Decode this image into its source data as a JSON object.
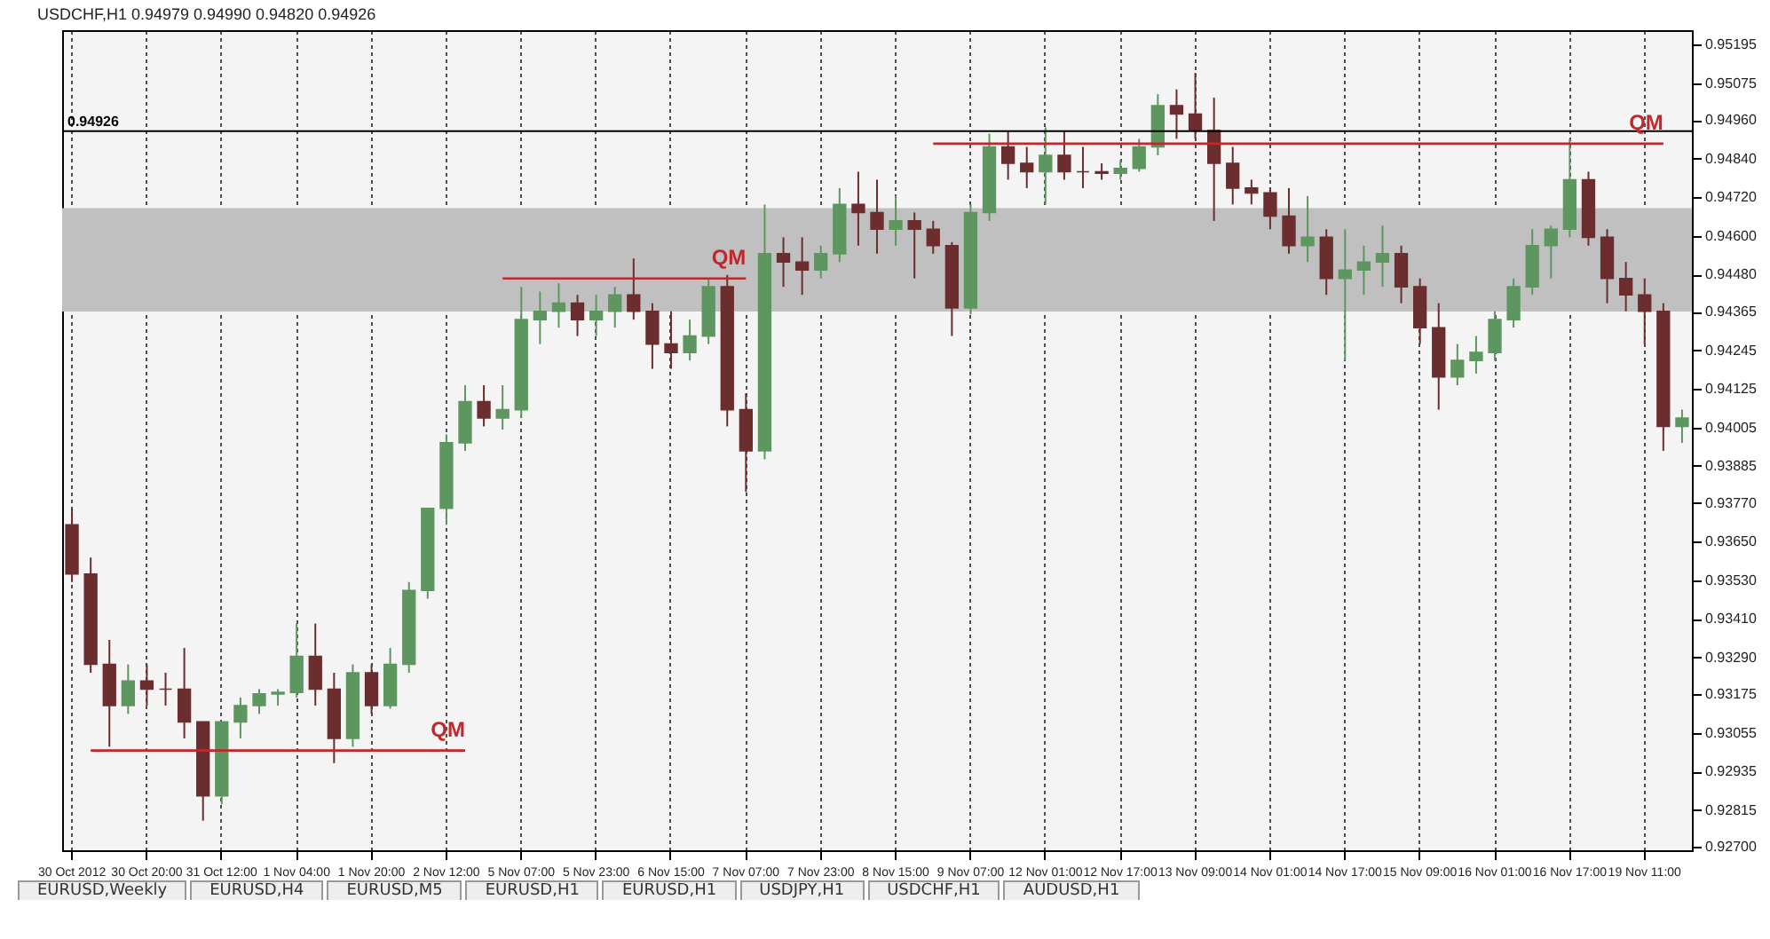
{
  "chart_data": {
    "type": "candlestick",
    "title": "USDCHF,H1  0.94979 0.94990 0.94820 0.94926",
    "categories": [
      "30 Oct 2012",
      null,
      null,
      null,
      "30 Oct 20:00",
      null,
      null,
      null,
      "31 Oct 12:00",
      null,
      null,
      null,
      "1 Nov 04:00",
      null,
      null,
      null,
      "1 Nov 20:00",
      null,
      null,
      null,
      "2 Nov 12:00",
      null,
      null,
      null,
      "5 Nov 07:00",
      null,
      null,
      null,
      "5 Nov 23:00",
      null,
      null,
      null,
      "6 Nov 15:00",
      null,
      null,
      null,
      "7 Nov 07:00",
      null,
      null,
      null,
      "7 Nov 23:00",
      null,
      null,
      null,
      "8 Nov 15:00",
      null,
      null,
      null,
      "9 Nov 07:00",
      null,
      null,
      null,
      "12 Nov 01:00",
      null,
      null,
      null,
      "12 Nov 17:00",
      null,
      null,
      null,
      "13 Nov 09:00",
      null,
      null,
      null,
      "14 Nov 01:00",
      null,
      null,
      null,
      "14 Nov 17:00",
      null,
      null,
      null,
      "15 Nov 09:00",
      null,
      null,
      null,
      "16 Nov 01:00",
      null,
      null,
      null,
      "16 Nov 17:00",
      null,
      null,
      null,
      "19 Nov 11:00",
      null,
      null
    ],
    "ohlc": [
      [
        0.93702,
        0.93753,
        0.93524,
        0.93549
      ],
      [
        0.93549,
        0.936,
        0.93242,
        0.93268
      ],
      [
        0.93268,
        0.93344,
        0.93012,
        0.9314
      ],
      [
        0.9314,
        0.93268,
        0.93114,
        0.93216
      ],
      [
        0.93216,
        0.93268,
        0.9314,
        0.93191
      ],
      [
        0.93191,
        0.93242,
        0.9314,
        0.93191
      ],
      [
        0.93191,
        0.93319,
        0.93038,
        0.93089
      ],
      [
        0.93089,
        0.93089,
        0.92782,
        0.92859
      ],
      [
        0.92859,
        0.93089,
        0.92833,
        0.93089
      ],
      [
        0.93089,
        0.93165,
        0.93038,
        0.9314
      ],
      [
        0.9314,
        0.93191,
        0.93114,
        0.93176
      ],
      [
        0.93176,
        0.93191,
        0.9314,
        0.93181
      ],
      [
        0.93181,
        0.93395,
        0.93165,
        0.93293
      ],
      [
        0.93293,
        0.93395,
        0.9314,
        0.93191
      ],
      [
        0.93191,
        0.93242,
        0.92961,
        0.93038
      ],
      [
        0.93038,
        0.93268,
        0.93012,
        0.93242
      ],
      [
        0.93242,
        0.93268,
        0.93114,
        0.9314
      ],
      [
        0.9314,
        0.93319,
        0.9313,
        0.93268
      ],
      [
        0.93268,
        0.93524,
        0.93242,
        0.93498
      ],
      [
        0.93498,
        0.93753,
        0.93472,
        0.93753
      ],
      [
        0.93753,
        0.93983,
        0.93702,
        0.93957
      ],
      [
        0.93957,
        0.94136,
        0.93932,
        0.94085
      ],
      [
        0.94085,
        0.94136,
        0.94008,
        0.94034
      ],
      [
        0.94034,
        0.94136,
        0.93998,
        0.9406
      ],
      [
        0.9406,
        0.94442,
        0.94034,
        0.9434
      ],
      [
        0.9434,
        0.94427,
        0.94264,
        0.94366
      ],
      [
        0.94366,
        0.94453,
        0.94315,
        0.94391
      ],
      [
        0.94391,
        0.94417,
        0.94289,
        0.9434
      ],
      [
        0.9434,
        0.94417,
        0.94289,
        0.94366
      ],
      [
        0.94366,
        0.94442,
        0.94315,
        0.94417
      ],
      [
        0.94417,
        0.9453,
        0.9434,
        0.94366
      ],
      [
        0.94366,
        0.94391,
        0.94187,
        0.94264
      ],
      [
        0.94264,
        0.94366,
        0.94187,
        0.94238
      ],
      [
        0.94238,
        0.9434,
        0.94213,
        0.94289
      ],
      [
        0.94289,
        0.94468,
        0.94264,
        0.94442
      ],
      [
        0.94442,
        0.94479,
        0.94008,
        0.9406
      ],
      [
        0.9406,
        0.94111,
        0.93804,
        0.93932
      ],
      [
        0.93932,
        0.94698,
        0.93906,
        0.94545
      ],
      [
        0.94545,
        0.94596,
        0.94442,
        0.94519
      ],
      [
        0.94519,
        0.94596,
        0.94417,
        0.94494
      ],
      [
        0.94494,
        0.9457,
        0.94468,
        0.94545
      ],
      [
        0.94545,
        0.94749,
        0.94519,
        0.94698
      ],
      [
        0.94698,
        0.948,
        0.9457,
        0.94673
      ],
      [
        0.94673,
        0.94775,
        0.94545,
        0.94621
      ],
      [
        0.94621,
        0.94724,
        0.9457,
        0.94647
      ],
      [
        0.94647,
        0.94673,
        0.94468,
        0.94621
      ],
      [
        0.94621,
        0.94647,
        0.94545,
        0.9457
      ],
      [
        0.9457,
        0.94581,
        0.94289,
        0.94376
      ],
      [
        0.94376,
        0.94698,
        0.94356,
        0.94673
      ],
      [
        0.94673,
        0.94918,
        0.94647,
        0.94877
      ],
      [
        0.94877,
        0.94928,
        0.94775,
        0.94826
      ],
      [
        0.94826,
        0.94877,
        0.94749,
        0.948
      ],
      [
        0.948,
        0.94938,
        0.94698,
        0.94851
      ],
      [
        0.94851,
        0.94928,
        0.94775,
        0.948
      ],
      [
        0.948,
        0.94877,
        0.94749,
        0.948
      ],
      [
        0.948,
        0.94826,
        0.94775,
        0.94795
      ],
      [
        0.94795,
        0.94836,
        0.94775,
        0.9481
      ],
      [
        0.9481,
        0.94902,
        0.948,
        0.94877
      ],
      [
        0.94877,
        0.95041,
        0.94851,
        0.95005
      ],
      [
        0.95005,
        0.95056,
        0.94902,
        0.94979
      ],
      [
        0.94979,
        0.95107,
        0.94902,
        0.94928
      ],
      [
        0.94928,
        0.9503,
        0.94647,
        0.94826
      ],
      [
        0.94826,
        0.94877,
        0.94698,
        0.94749
      ],
      [
        0.94749,
        0.94775,
        0.94698,
        0.94734
      ],
      [
        0.94734,
        0.94749,
        0.94621,
        0.94662
      ],
      [
        0.94662,
        0.94749,
        0.94545,
        0.9457
      ],
      [
        0.9457,
        0.94724,
        0.94519,
        0.94596
      ],
      [
        0.94596,
        0.94621,
        0.94417,
        0.94468
      ],
      [
        0.94468,
        0.94621,
        0.94213,
        0.94494
      ],
      [
        0.94494,
        0.9457,
        0.94417,
        0.94519
      ],
      [
        0.94519,
        0.94632,
        0.94442,
        0.94545
      ],
      [
        0.94545,
        0.9457,
        0.94391,
        0.94442
      ],
      [
        0.94442,
        0.94468,
        0.94264,
        0.94315
      ],
      [
        0.94315,
        0.94391,
        0.9406,
        0.94162
      ],
      [
        0.94162,
        0.94264,
        0.94136,
        0.94213
      ],
      [
        0.94213,
        0.94289,
        0.94172,
        0.94238
      ],
      [
        0.94238,
        0.94366,
        0.94213,
        0.9434
      ],
      [
        0.9434,
        0.94468,
        0.94315,
        0.94442
      ],
      [
        0.94442,
        0.94621,
        0.94417,
        0.9457
      ],
      [
        0.9457,
        0.94632,
        0.94468,
        0.94621
      ],
      [
        0.94621,
        0.94902,
        0.94596,
        0.94775
      ],
      [
        0.94775,
        0.948,
        0.9457,
        0.94596
      ],
      [
        0.94596,
        0.94621,
        0.94391,
        0.94468
      ],
      [
        0.94468,
        0.94519,
        0.94366,
        0.94417
      ],
      [
        0.94417,
        0.94468,
        0.94264,
        0.94366
      ],
      [
        0.94366,
        0.94391,
        0.93932,
        0.94008
      ],
      [
        0.94008,
        0.9406,
        0.93957,
        0.94034
      ]
    ],
    "colors": [
      "#6b2d2d",
      "#6b2d2d",
      "#6b2d2d",
      "#5e9660",
      "#6b2d2d",
      "#6b2d2d",
      "#6b2d2d",
      "#6b2d2d",
      "#5e9660",
      "#5e9660",
      "#5e9660",
      "#5e9660",
      "#5e9660",
      "#6b2d2d",
      "#6b2d2d",
      "#5e9660",
      "#6b2d2d",
      "#5e9660",
      "#5e9660",
      "#5e9660",
      "#5e9660",
      "#5e9660",
      "#6b2d2d",
      "#5e9660",
      "#5e9660",
      "#5e9660",
      "#5e9660",
      "#6b2d2d",
      "#5e9660",
      "#5e9660",
      "#6b2d2d",
      "#6b2d2d",
      "#6b2d2d",
      "#5e9660",
      "#5e9660",
      "#6b2d2d",
      "#6b2d2d",
      "#5e9660",
      "#6b2d2d",
      "#6b2d2d",
      "#5e9660",
      "#5e9660",
      "#6b2d2d",
      "#6b2d2d",
      "#5e9660",
      "#6b2d2d",
      "#6b2d2d",
      "#6b2d2d",
      "#5e9660",
      "#5e9660",
      "#6b2d2d",
      "#6b2d2d",
      "#5e9660",
      "#6b2d2d",
      "#6b2d2d",
      "#6b2d2d",
      "#5e9660",
      "#5e9660",
      "#5e9660",
      "#6b2d2d",
      "#6b2d2d",
      "#6b2d2d",
      "#6b2d2d",
      "#6b2d2d",
      "#6b2d2d",
      "#6b2d2d",
      "#5e9660",
      "#6b2d2d",
      "#5e9660",
      "#5e9660",
      "#5e9660",
      "#6b2d2d",
      "#6b2d2d",
      "#6b2d2d",
      "#5e9660",
      "#5e9660",
      "#5e9660",
      "#5e9660",
      "#5e9660",
      "#5e9660",
      "#5e9660",
      "#6b2d2d",
      "#6b2d2d",
      "#6b2d2d",
      "#6b2d2d",
      "#6b2d2d",
      "#5e9660"
    ],
    "series": [
      {
        "type": "line",
        "color": "#c0282d",
        "values": [
          null,
          0.93,
          0.93,
          0.93,
          0.93,
          0.93,
          0.93,
          0.93,
          0.93,
          0.93,
          0.93,
          0.93,
          0.93,
          0.93,
          0.93,
          0.93,
          0.93,
          0.93,
          0.93,
          0.93,
          0.93,
          0.93,
          null,
          null,
          null,
          null,
          null,
          null,
          null,
          null,
          null,
          null,
          null,
          null,
          null,
          null,
          null,
          null,
          null,
          null,
          null,
          null,
          null,
          null,
          null,
          null,
          null,
          null,
          null,
          null,
          null,
          null,
          null,
          null,
          null,
          null,
          null,
          null,
          null,
          null,
          null,
          null,
          null,
          null,
          null,
          null,
          null,
          null,
          null,
          null,
          null,
          null,
          null,
          null,
          null,
          null,
          null,
          null,
          null,
          null,
          null,
          null,
          null,
          null,
          null,
          null,
          null
        ]
      },
      {
        "type": "line",
        "color": "#c0282d",
        "values": [
          null,
          null,
          null,
          null,
          null,
          null,
          null,
          null,
          null,
          null,
          null,
          null,
          null,
          null,
          null,
          null,
          null,
          null,
          null,
          null,
          null,
          null,
          null,
          0.94468,
          0.94468,
          0.94468,
          0.94468,
          0.94468,
          0.94468,
          0.94468,
          0.94468,
          0.94468,
          0.94468,
          0.94468,
          0.94468,
          0.94468,
          0.94468,
          null,
          null,
          null,
          null,
          null,
          null,
          null,
          null,
          null,
          null,
          null,
          null,
          null,
          null,
          null,
          null,
          null,
          null,
          null,
          null,
          null,
          null,
          null,
          null,
          null,
          null,
          null,
          null,
          null,
          null,
          null,
          null,
          null,
          null,
          null,
          null,
          null,
          null,
          null,
          null,
          null,
          null,
          null,
          null,
          null,
          null,
          null,
          null,
          null,
          null
        ]
      },
      {
        "type": "line",
        "color": "#c0282d",
        "values": [
          null,
          null,
          null,
          null,
          null,
          null,
          null,
          null,
          null,
          null,
          null,
          null,
          null,
          null,
          null,
          null,
          null,
          null,
          null,
          null,
          null,
          null,
          null,
          null,
          null,
          null,
          null,
          null,
          null,
          null,
          null,
          null,
          null,
          null,
          null,
          null,
          null,
          null,
          null,
          null,
          null,
          null,
          null,
          null,
          null,
          null,
          0.94887,
          0.94887,
          0.94887,
          0.94887,
          0.94887,
          0.94887,
          0.94887,
          0.94887,
          0.94887,
          0.94887,
          0.94887,
          0.94887,
          0.94887,
          0.94887,
          0.94887,
          0.94887,
          0.94887,
          0.94887,
          0.94887,
          0.94887,
          0.94887,
          0.94887,
          0.94887,
          0.94887,
          0.94887,
          0.94887,
          0.94887,
          0.94887,
          0.94887,
          0.94887,
          0.94887,
          0.94887,
          0.94887,
          0.94887,
          0.94887,
          0.94887,
          0.94887,
          0.94887,
          0.94887,
          0.94887,
          null
        ]
      }
    ],
    "ylim": [
      0.9269,
      0.9524
    ],
    "yticks": [
      {
        "value": 0.927,
        "label": "0.92700"
      },
      {
        "value": 0.92815,
        "label": "0.92815"
      },
      {
        "value": 0.92935,
        "label": "0.92935"
      },
      {
        "value": 0.93055,
        "label": "0.93055"
      },
      {
        "value": 0.93175,
        "label": "0.93175"
      },
      {
        "value": 0.9329,
        "label": "0.93290"
      },
      {
        "value": 0.9341,
        "label": "0.93410"
      },
      {
        "value": 0.9353,
        "label": "0.93530"
      },
      {
        "value": 0.9365,
        "label": "0.93650"
      },
      {
        "value": 0.9377,
        "label": "0.93770"
      },
      {
        "value": 0.93885,
        "label": "0.93885"
      },
      {
        "value": 0.94005,
        "label": "0.94005"
      },
      {
        "value": 0.94125,
        "label": "0.94125"
      },
      {
        "value": 0.94245,
        "label": "0.94245"
      },
      {
        "value": 0.94365,
        "label": "0.94365"
      },
      {
        "value": 0.9448,
        "label": "0.94480"
      },
      {
        "value": 0.946,
        "label": "0.94600"
      },
      {
        "value": 0.9472,
        "label": "0.94720"
      },
      {
        "value": 0.9484,
        "label": "0.94840"
      },
      {
        "value": 0.9496,
        "label": "0.94960"
      },
      {
        "value": 0.95075,
        "label": "0.95075"
      },
      {
        "value": 0.95195,
        "label": "0.95195"
      }
    ],
    "bands": [
      {
        "axis": "y",
        "from": 0.94365,
        "to": 0.94687,
        "color": "#c0c0c0"
      }
    ],
    "ref_lines": [
      {
        "axis": "y",
        "value": 0.94926,
        "label": "0.94926",
        "color": "#000000"
      }
    ],
    "annotations": [
      "QM",
      "QM",
      "QM",
      "EURUSD,Weekly",
      "EURUSD,H4",
      "EURUSD,M5",
      "EURUSD,H1",
      "EURUSD,H1",
      "USDJPY,H1",
      "USDCHF,H1",
      "AUDUSD,H1"
    ],
    "grid": "x"
  }
}
